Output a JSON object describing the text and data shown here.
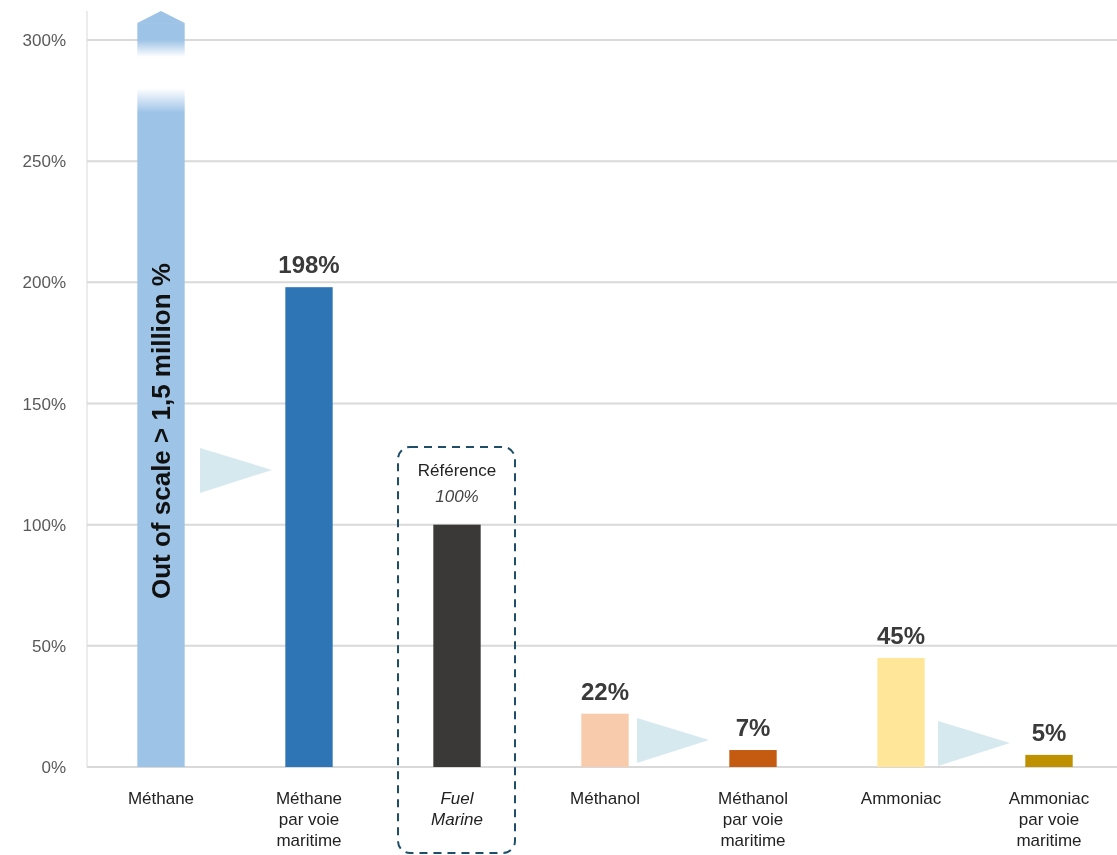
{
  "chart_data": {
    "type": "bar",
    "categories": [
      "Méthane",
      "Méthane\npar voie\nmaritime",
      "Fuel\nMarine",
      "Méthanol",
      "Méthanol\npar voie\nmaritime",
      "Ammoniac",
      "Ammoniac\npar voie\nmaritime"
    ],
    "values": [
      307,
      198,
      100,
      22,
      7,
      45,
      5
    ],
    "colors": [
      "#9dc3e6",
      "#2e75b6",
      "#3a3938",
      "#f8cbad",
      "#c55a11",
      "#ffe699",
      "#bf9000"
    ],
    "value_labels": [
      null,
      "198%",
      null,
      "22%",
      "7%",
      "45%",
      "5%"
    ],
    "ylim": [
      0,
      312
    ],
    "yticks": [
      {
        "value": 0,
        "label": "0%"
      },
      {
        "value": 50,
        "label": "50%"
      },
      {
        "value": 100,
        "label": "100%"
      },
      {
        "value": 150,
        "label": "150%"
      },
      {
        "value": 200,
        "label": "200%"
      },
      {
        "value": 250,
        "label": "250%"
      },
      {
        "value": 300,
        "label": "300%"
      }
    ],
    "grid": "y",
    "annotations": [
      "Out of scale > 1,5 million %",
      "Référence",
      "100%"
    ]
  }
}
